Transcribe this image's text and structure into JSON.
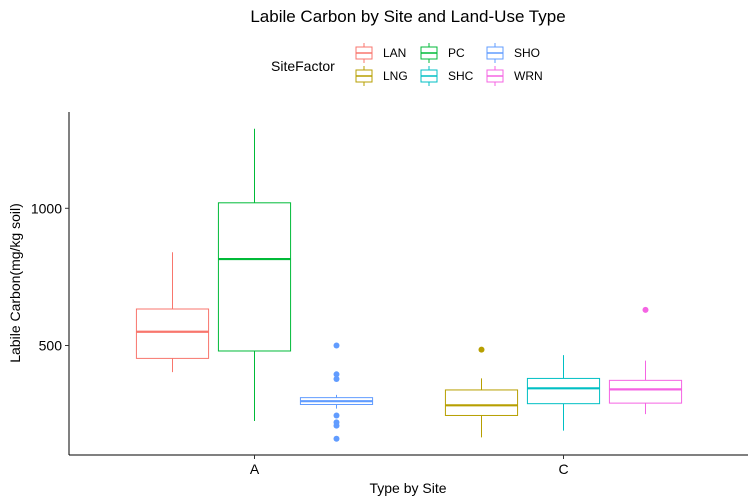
{
  "chart_data": {
    "type": "box",
    "title": "Labile Carbon by Site and Land-Use Type",
    "xlabel": "Type by Site",
    "ylabel": "Labile Carbon(mg/kg soil)",
    "categories": [
      "A",
      "C"
    ],
    "y_ticks": [
      500,
      1000
    ],
    "ylim": [
      125,
      1340
    ],
    "grid": false,
    "legend": {
      "title": "SiteFactor",
      "position": "top",
      "entries": [
        "LAN",
        "PC",
        "SHO",
        "LNG",
        "SHC",
        "WRN"
      ]
    },
    "series": [
      {
        "name": "LAN",
        "category": "A",
        "color": "#F8766D",
        "whisker_low": 403,
        "q1": 453,
        "median": 550,
        "q3": 633,
        "whisker_high": 840,
        "outliers": []
      },
      {
        "name": "PC",
        "category": "A",
        "color": "#00BA38",
        "whisker_low": 225,
        "q1": 480,
        "median": 815,
        "q3": 1020,
        "whisker_high": 1290,
        "outliers": []
      },
      {
        "name": "SHO",
        "category": "A",
        "color": "#619CFF",
        "whisker_low": 270,
        "q1": 285,
        "median": 297,
        "q3": 310,
        "whisker_high": 320,
        "outliers": [
          500,
          395,
          378,
          245,
          220,
          208,
          160
        ]
      },
      {
        "name": "LNG",
        "category": "C",
        "color": "#B79F00",
        "whisker_low": 165,
        "q1": 245,
        "median": 282,
        "q3": 338,
        "whisker_high": 380,
        "outliers": [
          485
        ]
      },
      {
        "name": "SHC",
        "category": "C",
        "color": "#00BFC4",
        "whisker_low": 190,
        "q1": 288,
        "median": 344,
        "q3": 380,
        "whisker_high": 465,
        "outliers": []
      },
      {
        "name": "WRN",
        "category": "C",
        "color": "#F564E3",
        "whisker_low": 250,
        "q1": 290,
        "median": 340,
        "q3": 373,
        "whisker_high": 445,
        "outliers": [
          630
        ]
      }
    ]
  }
}
